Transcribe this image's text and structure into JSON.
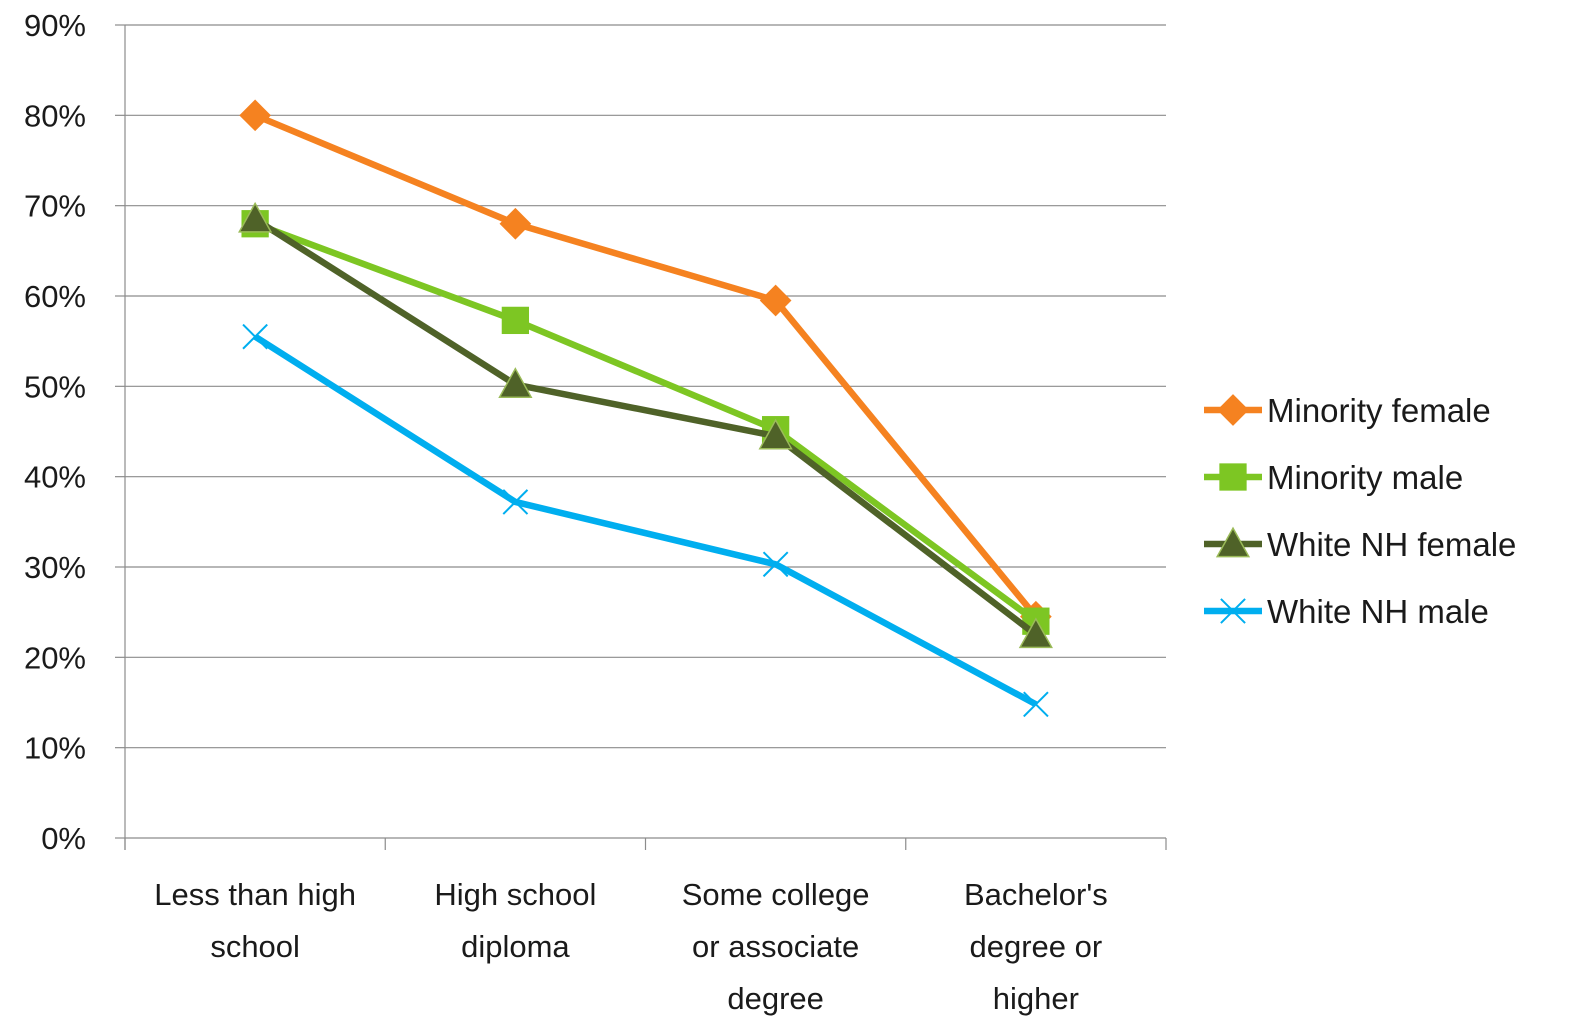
{
  "chart_data": {
    "type": "line",
    "title": "",
    "xlabel": "",
    "ylabel": "",
    "categories": [
      [
        "Less than high",
        "school"
      ],
      [
        "High school",
        "diploma"
      ],
      [
        "Some college",
        "or associate",
        "degree"
      ],
      [
        "Bachelor's",
        "degree or",
        "higher"
      ]
    ],
    "y_ticks": [
      "0%",
      "10%",
      "20%",
      "30%",
      "40%",
      "50%",
      "60%",
      "70%",
      "80%",
      "90%"
    ],
    "ylim": [
      0,
      90
    ],
    "grid": true,
    "legend_position": "right",
    "series": [
      {
        "name": "Minority female",
        "color": "#F58220",
        "marker": "diamond",
        "values": [
          80,
          68,
          59.5,
          24.5
        ]
      },
      {
        "name": "Minority male",
        "color": "#7DC623",
        "marker": "square",
        "values": [
          68,
          57.3,
          45.2,
          24
        ]
      },
      {
        "name": "White NH female",
        "color": "#4F6228",
        "marker": "triangle",
        "values": [
          68.5,
          50.2,
          44.5,
          22.5
        ]
      },
      {
        "name": "White NH male",
        "color": "#00AEEF",
        "marker": "x",
        "values": [
          55.5,
          37.2,
          30.3,
          14.8
        ]
      }
    ]
  }
}
